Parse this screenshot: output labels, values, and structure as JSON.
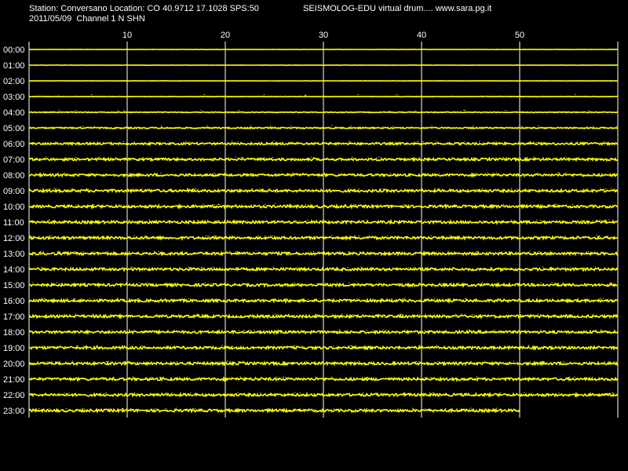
{
  "header": {
    "station_line": "Station: Conversano Location: CO 40.9712 17.1028 SPS:50",
    "app_line": "SEISMOLOG-EDU virtual drum.... www.sara.pg.it",
    "date_channel_line": "2011/05/09  Channel 1 N SHN"
  },
  "colors": {
    "background": "#000000",
    "trace": "#ffff00",
    "grid": "#ffffff",
    "text": "#ffffff"
  },
  "chart_data": {
    "type": "line",
    "x_ticks": [
      10,
      20,
      30,
      40,
      50
    ],
    "x_range": [
      0,
      60
    ],
    "hours": [
      "00:00",
      "01:00",
      "02:00",
      "03:00",
      "04:00",
      "05:00",
      "06:00",
      "07:00",
      "08:00",
      "09:00",
      "10:00",
      "11:00",
      "12:00",
      "13:00",
      "14:00",
      "15:00",
      "16:00",
      "17:00",
      "18:00",
      "19:00",
      "20:00",
      "21:00",
      "22:00",
      "23:00"
    ],
    "trace_end_minute": [
      60,
      60,
      60,
      60,
      60,
      60,
      60,
      60,
      60,
      60,
      60,
      60,
      60,
      60,
      60,
      60,
      60,
      60,
      60,
      60,
      60,
      60,
      60,
      50
    ],
    "noise_level": [
      0.1,
      0.1,
      0.1,
      0.2,
      0.3,
      0.5,
      0.8,
      0.9,
      0.9,
      1.0,
      1.0,
      1.0,
      1.0,
      1.0,
      1.0,
      1.0,
      1.0,
      1.0,
      1.0,
      1.0,
      1.0,
      1.0,
      1.0,
      1.0
    ]
  }
}
